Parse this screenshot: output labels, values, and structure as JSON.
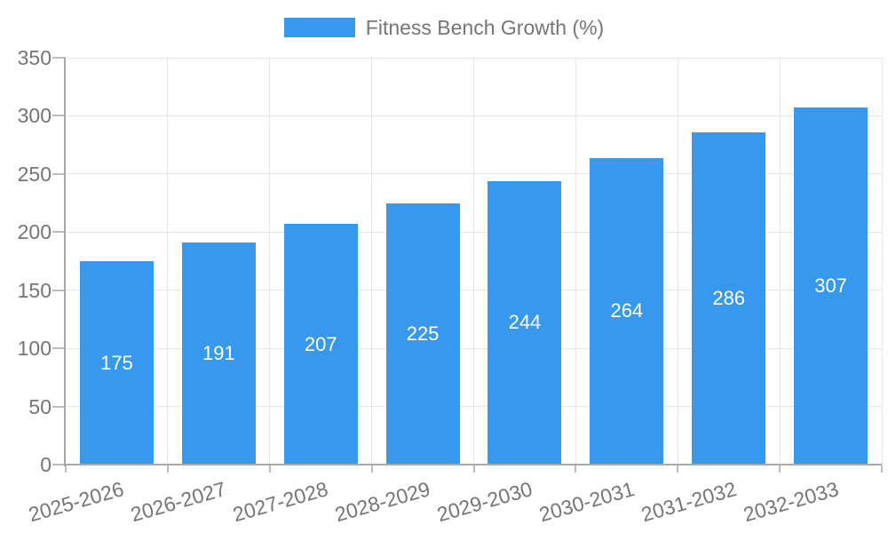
{
  "chart_data": {
    "type": "bar",
    "title": "",
    "xlabel": "",
    "ylabel": "",
    "categories": [
      "2025-2026",
      "2026-2027",
      "2027-2028",
      "2028-2029",
      "2029-2030",
      "2030-2031",
      "2031-2032",
      "2032-2033"
    ],
    "series": [
      {
        "name": "Fitness Bench Growth (%)",
        "values": [
          175,
          191,
          207,
          225,
          244,
          264,
          286,
          307
        ],
        "color": "#3899ec"
      }
    ],
    "ylim": [
      0,
      350
    ],
    "yticks": [
      0,
      50,
      100,
      150,
      200,
      250,
      300,
      350
    ],
    "grid": true,
    "legend_position": "top-center",
    "value_labels": "inside-center",
    "x_label_rotation_deg": -16
  },
  "colors": {
    "bar": "#3899ec",
    "grid": "#e6e6e6",
    "axis": "#a9a9a9",
    "tick": "#bdbdbd",
    "text": "#757575",
    "value_text": "#ffffff",
    "background": "#ffffff"
  }
}
